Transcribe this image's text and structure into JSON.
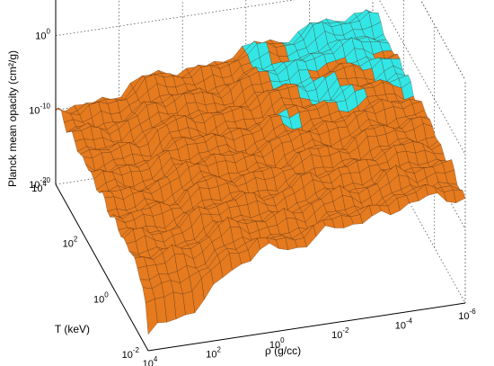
{
  "chart_data": {
    "type": "surface3d",
    "title": "",
    "zlabel": "Planck mean opacity (cm²/g)",
    "xlabel": "ρ (g/cc)",
    "ylabel": "T (keV)",
    "x_scale": "log",
    "y_scale": "log",
    "z_scale": "log",
    "x_direction": "decreasing (10^4 front-left to 10^-6 front-right)",
    "x_ticks": [
      {
        "base": "10",
        "exp": "4"
      },
      {
        "base": "10",
        "exp": "2"
      },
      {
        "base": "10",
        "exp": "0"
      },
      {
        "base": "10",
        "exp": "-2"
      },
      {
        "base": "10",
        "exp": "-4"
      },
      {
        "base": "10",
        "exp": "-6"
      }
    ],
    "y_ticks": [
      {
        "base": "10",
        "exp": "-2"
      },
      {
        "base": "10",
        "exp": "0"
      },
      {
        "base": "10",
        "exp": "2"
      },
      {
        "base": "10",
        "exp": "4"
      }
    ],
    "z_ticks": [
      {
        "base": "10",
        "exp": "-20"
      },
      {
        "base": "10",
        "exp": "-10"
      },
      {
        "base": "10",
        "exp": "0"
      },
      {
        "base": "10",
        "exp": "10"
      }
    ],
    "xlim_log10": [
      -6,
      4
    ],
    "ylim_log10": [
      -2,
      4
    ],
    "zlim_log10": [
      -20,
      10
    ],
    "grid": true,
    "surface_colors": {
      "primary": "#e57a1f",
      "secondary": "#33e6e6",
      "edge": "#3a1d05"
    },
    "surface_description": "Opacity surface: broad plateau near 10^-15 to 10^-5 with step-like ridges at ρ ≈ 10^2, 10^-1 and 10^-4; cyan regions at low density / high temperature corner."
  }
}
